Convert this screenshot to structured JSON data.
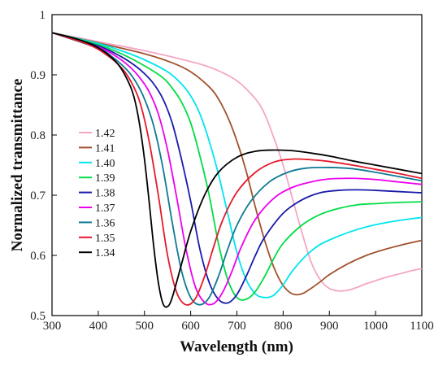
{
  "chart_data": {
    "type": "line",
    "title": "",
    "xlabel": "Wavelength (nm)",
    "ylabel": "Normalized transmittance",
    "xlim": [
      300,
      1100
    ],
    "ylim": [
      0.5,
      1.0
    ],
    "xticks": [
      300,
      400,
      500,
      600,
      700,
      800,
      900,
      1000,
      1100
    ],
    "yticks": [
      0.5,
      0.6,
      0.7,
      0.8,
      0.9,
      1.0
    ],
    "ytick_labels": [
      "0.5",
      "0.6",
      "0.7",
      "0.8",
      "0.9",
      "1"
    ],
    "grid": false,
    "legend_position": "left",
    "series": [
      {
        "name": "1.42",
        "color": "#f4a6c6",
        "points": [
          [
            300,
            0.97
          ],
          [
            400,
            0.955
          ],
          [
            500,
            0.94
          ],
          [
            600,
            0.922
          ],
          [
            650,
            0.91
          ],
          [
            700,
            0.89
          ],
          [
            740,
            0.86
          ],
          [
            760,
            0.835
          ],
          [
            780,
            0.795
          ],
          [
            800,
            0.75
          ],
          [
            820,
            0.695
          ],
          [
            840,
            0.64
          ],
          [
            860,
            0.59
          ],
          [
            880,
            0.56
          ],
          [
            900,
            0.545
          ],
          [
            920,
            0.541
          ],
          [
            940,
            0.542
          ],
          [
            960,
            0.547
          ],
          [
            980,
            0.553
          ],
          [
            1000,
            0.558
          ],
          [
            1020,
            0.563
          ],
          [
            1040,
            0.567
          ],
          [
            1060,
            0.571
          ],
          [
            1080,
            0.575
          ],
          [
            1100,
            0.578
          ]
        ]
      },
      {
        "name": "1.41",
        "color": "#a0522d",
        "points": [
          [
            300,
            0.97
          ],
          [
            400,
            0.953
          ],
          [
            500,
            0.935
          ],
          [
            560,
            0.92
          ],
          [
            600,
            0.905
          ],
          [
            640,
            0.88
          ],
          [
            660,
            0.86
          ],
          [
            680,
            0.83
          ],
          [
            700,
            0.79
          ],
          [
            720,
            0.74
          ],
          [
            740,
            0.68
          ],
          [
            760,
            0.625
          ],
          [
            780,
            0.58
          ],
          [
            800,
            0.55
          ],
          [
            820,
            0.536
          ],
          [
            840,
            0.536
          ],
          [
            860,
            0.545
          ],
          [
            880,
            0.556
          ],
          [
            900,
            0.568
          ],
          [
            940,
            0.586
          ],
          [
            980,
            0.6
          ],
          [
            1020,
            0.61
          ],
          [
            1060,
            0.618
          ],
          [
            1100,
            0.625
          ]
        ]
      },
      {
        "name": "1.40",
        "color": "#00e5f0",
        "points": [
          [
            300,
            0.97
          ],
          [
            400,
            0.952
          ],
          [
            450,
            0.94
          ],
          [
            500,
            0.925
          ],
          [
            550,
            0.905
          ],
          [
            580,
            0.885
          ],
          [
            600,
            0.865
          ],
          [
            620,
            0.835
          ],
          [
            640,
            0.79
          ],
          [
            660,
            0.735
          ],
          [
            680,
            0.67
          ],
          [
            700,
            0.605
          ],
          [
            720,
            0.56
          ],
          [
            740,
            0.536
          ],
          [
            760,
            0.53
          ],
          [
            780,
            0.534
          ],
          [
            800,
            0.551
          ],
          [
            820,
            0.574
          ],
          [
            850,
            0.6
          ],
          [
            880,
            0.618
          ],
          [
            920,
            0.632
          ],
          [
            960,
            0.643
          ],
          [
            1000,
            0.651
          ],
          [
            1050,
            0.658
          ],
          [
            1100,
            0.663
          ]
        ]
      },
      {
        "name": "1.39",
        "color": "#00dd44",
        "points": [
          [
            300,
            0.97
          ],
          [
            400,
            0.95
          ],
          [
            450,
            0.935
          ],
          [
            500,
            0.915
          ],
          [
            540,
            0.895
          ],
          [
            560,
            0.878
          ],
          [
            580,
            0.855
          ],
          [
            600,
            0.82
          ],
          [
            620,
            0.765
          ],
          [
            640,
            0.7
          ],
          [
            660,
            0.62
          ],
          [
            680,
            0.56
          ],
          [
            700,
            0.53
          ],
          [
            720,
            0.527
          ],
          [
            740,
            0.54
          ],
          [
            760,
            0.565
          ],
          [
            780,
            0.595
          ],
          [
            800,
            0.62
          ],
          [
            840,
            0.65
          ],
          [
            880,
            0.668
          ],
          [
            920,
            0.678
          ],
          [
            960,
            0.684
          ],
          [
            1000,
            0.686
          ],
          [
            1050,
            0.688
          ],
          [
            1100,
            0.689
          ]
        ]
      },
      {
        "name": "1.38",
        "color": "#1a1aaa",
        "points": [
          [
            300,
            0.97
          ],
          [
            400,
            0.948
          ],
          [
            450,
            0.93
          ],
          [
            480,
            0.915
          ],
          [
            500,
            0.902
          ],
          [
            520,
            0.885
          ],
          [
            540,
            0.86
          ],
          [
            560,
            0.82
          ],
          [
            580,
            0.76
          ],
          [
            600,
            0.69
          ],
          [
            620,
            0.61
          ],
          [
            640,
            0.555
          ],
          [
            660,
            0.527
          ],
          [
            680,
            0.521
          ],
          [
            700,
            0.535
          ],
          [
            720,
            0.565
          ],
          [
            740,
            0.6
          ],
          [
            760,
            0.63
          ],
          [
            800,
            0.67
          ],
          [
            840,
            0.692
          ],
          [
            880,
            0.704
          ],
          [
            920,
            0.708
          ],
          [
            960,
            0.709
          ],
          [
            1000,
            0.708
          ],
          [
            1050,
            0.706
          ],
          [
            1100,
            0.704
          ]
        ]
      },
      {
        "name": "1.37",
        "color": "#ee00ee",
        "points": [
          [
            300,
            0.97
          ],
          [
            400,
            0.946
          ],
          [
            440,
            0.93
          ],
          [
            470,
            0.912
          ],
          [
            490,
            0.895
          ],
          [
            510,
            0.872
          ],
          [
            530,
            0.835
          ],
          [
            550,
            0.775
          ],
          [
            570,
            0.695
          ],
          [
            590,
            0.61
          ],
          [
            610,
            0.548
          ],
          [
            630,
            0.522
          ],
          [
            650,
            0.52
          ],
          [
            670,
            0.54
          ],
          [
            690,
            0.575
          ],
          [
            710,
            0.615
          ],
          [
            740,
            0.66
          ],
          [
            780,
            0.695
          ],
          [
            820,
            0.713
          ],
          [
            860,
            0.722
          ],
          [
            900,
            0.727
          ],
          [
            950,
            0.728
          ],
          [
            1000,
            0.726
          ],
          [
            1050,
            0.722
          ],
          [
            1100,
            0.718
          ]
        ]
      },
      {
        "name": "1.36",
        "color": "#0e7a94",
        "points": [
          [
            300,
            0.97
          ],
          [
            400,
            0.944
          ],
          [
            430,
            0.93
          ],
          [
            460,
            0.91
          ],
          [
            480,
            0.89
          ],
          [
            500,
            0.86
          ],
          [
            520,
            0.815
          ],
          [
            540,
            0.745
          ],
          [
            560,
            0.655
          ],
          [
            580,
            0.575
          ],
          [
            600,
            0.53
          ],
          [
            620,
            0.518
          ],
          [
            640,
            0.53
          ],
          [
            660,
            0.565
          ],
          [
            680,
            0.61
          ],
          [
            700,
            0.65
          ],
          [
            730,
            0.69
          ],
          [
            770,
            0.722
          ],
          [
            810,
            0.738
          ],
          [
            850,
            0.745
          ],
          [
            900,
            0.746
          ],
          [
            950,
            0.744
          ],
          [
            1000,
            0.738
          ],
          [
            1050,
            0.731
          ],
          [
            1100,
            0.724
          ]
        ]
      },
      {
        "name": "1.35",
        "color": "#e51a2a",
        "points": [
          [
            300,
            0.97
          ],
          [
            380,
            0.95
          ],
          [
            420,
            0.932
          ],
          [
            450,
            0.912
          ],
          [
            470,
            0.89
          ],
          [
            490,
            0.855
          ],
          [
            510,
            0.79
          ],
          [
            530,
            0.7
          ],
          [
            550,
            0.6
          ],
          [
            570,
            0.538
          ],
          [
            590,
            0.518
          ],
          [
            610,
            0.528
          ],
          [
            630,
            0.565
          ],
          [
            650,
            0.615
          ],
          [
            670,
            0.66
          ],
          [
            700,
            0.705
          ],
          [
            740,
            0.738
          ],
          [
            780,
            0.755
          ],
          [
            820,
            0.76
          ],
          [
            860,
            0.759
          ],
          [
            900,
            0.756
          ],
          [
            950,
            0.75
          ],
          [
            1000,
            0.743
          ],
          [
            1050,
            0.736
          ],
          [
            1100,
            0.728
          ]
        ]
      },
      {
        "name": "1.34",
        "color": "#000000",
        "points": [
          [
            300,
            0.97
          ],
          [
            360,
            0.958
          ],
          [
            400,
            0.945
          ],
          [
            430,
            0.928
          ],
          [
            450,
            0.91
          ],
          [
            470,
            0.88
          ],
          [
            480,
            0.855
          ],
          [
            490,
            0.815
          ],
          [
            500,
            0.76
          ],
          [
            510,
            0.69
          ],
          [
            520,
            0.615
          ],
          [
            530,
            0.555
          ],
          [
            540,
            0.52
          ],
          [
            550,
            0.515
          ],
          [
            560,
            0.53
          ],
          [
            580,
            0.585
          ],
          [
            600,
            0.64
          ],
          [
            630,
            0.7
          ],
          [
            660,
            0.738
          ],
          [
            700,
            0.763
          ],
          [
            740,
            0.773
          ],
          [
            780,
            0.775
          ],
          [
            820,
            0.774
          ],
          [
            860,
            0.77
          ],
          [
            900,
            0.765
          ],
          [
            950,
            0.757
          ],
          [
            1000,
            0.75
          ],
          [
            1050,
            0.743
          ],
          [
            1100,
            0.736
          ]
        ]
      }
    ]
  }
}
